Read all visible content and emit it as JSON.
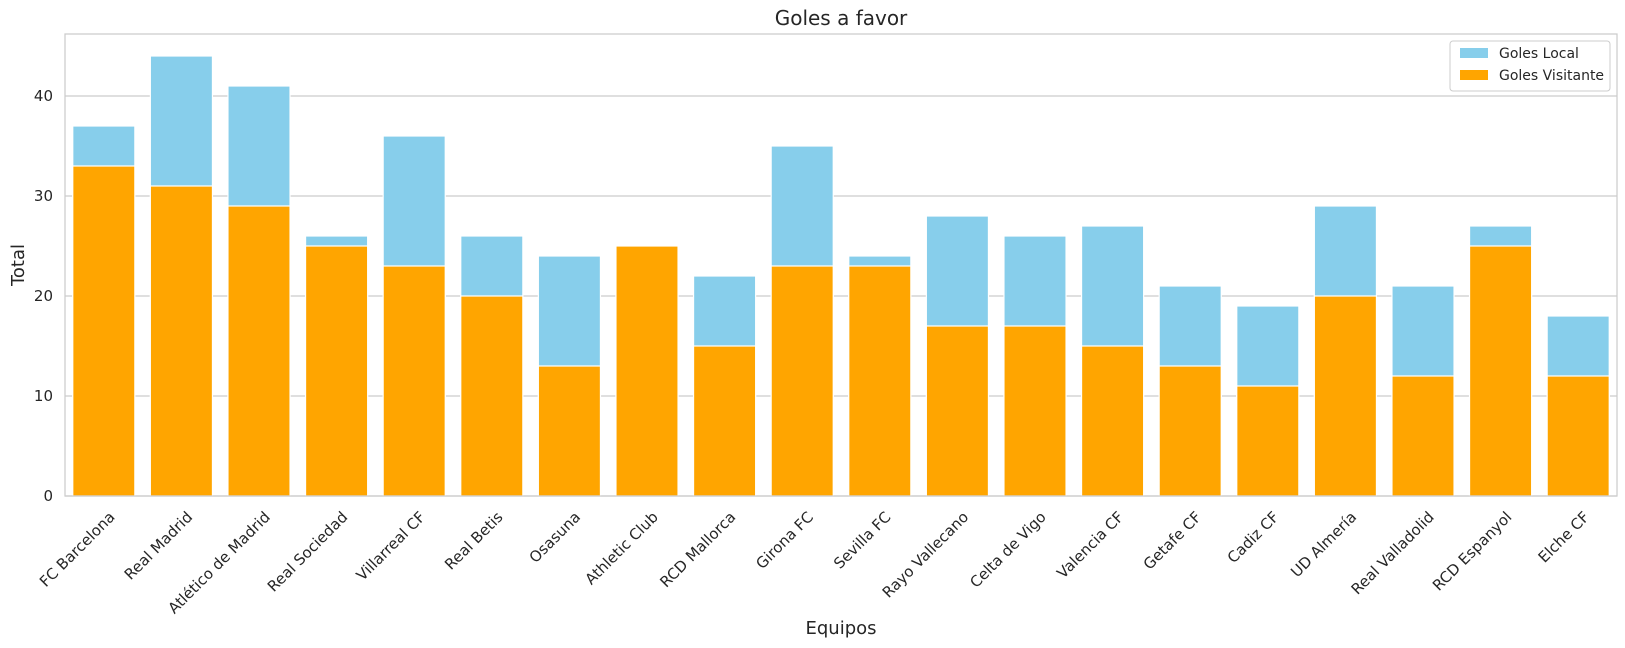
{
  "chart_data": {
    "type": "bar",
    "title": "Goles a favor",
    "xlabel": "Equipos",
    "ylabel": "Total",
    "ylim": [
      0,
      46.2
    ],
    "yticks": [
      0,
      10,
      20,
      30,
      40
    ],
    "grid": "horizontal",
    "legend_position": "top-right",
    "bar_mode": "overlay",
    "categories": [
      "FC Barcelona",
      "Real Madrid",
      "Atlético de Madrid",
      "Real Sociedad",
      "Villarreal CF",
      "Real Betis",
      "Osasuna",
      "Athletic Club",
      "RCD Mallorca",
      "Girona FC",
      "Sevilla FC",
      "Rayo Vallecano",
      "Celta de Vigo",
      "Valencia CF",
      "Getafe CF",
      "Cadiz CF",
      "UD Almería",
      "Real Valladolid",
      "RCD Espanyol",
      "Elche CF"
    ],
    "series": [
      {
        "name": "Goles Local",
        "color": "#87ceeb",
        "values": [
          37,
          44,
          41,
          26,
          36,
          26,
          24,
          25,
          22,
          35,
          24,
          28,
          26,
          27,
          21,
          19,
          29,
          21,
          27,
          18
        ]
      },
      {
        "name": "Goles Visitante",
        "color": "#ffa500",
        "values": [
          33,
          31,
          29,
          25,
          23,
          20,
          13,
          25,
          15,
          23,
          23,
          17,
          17,
          15,
          13,
          11,
          20,
          12,
          25,
          12
        ]
      }
    ]
  }
}
